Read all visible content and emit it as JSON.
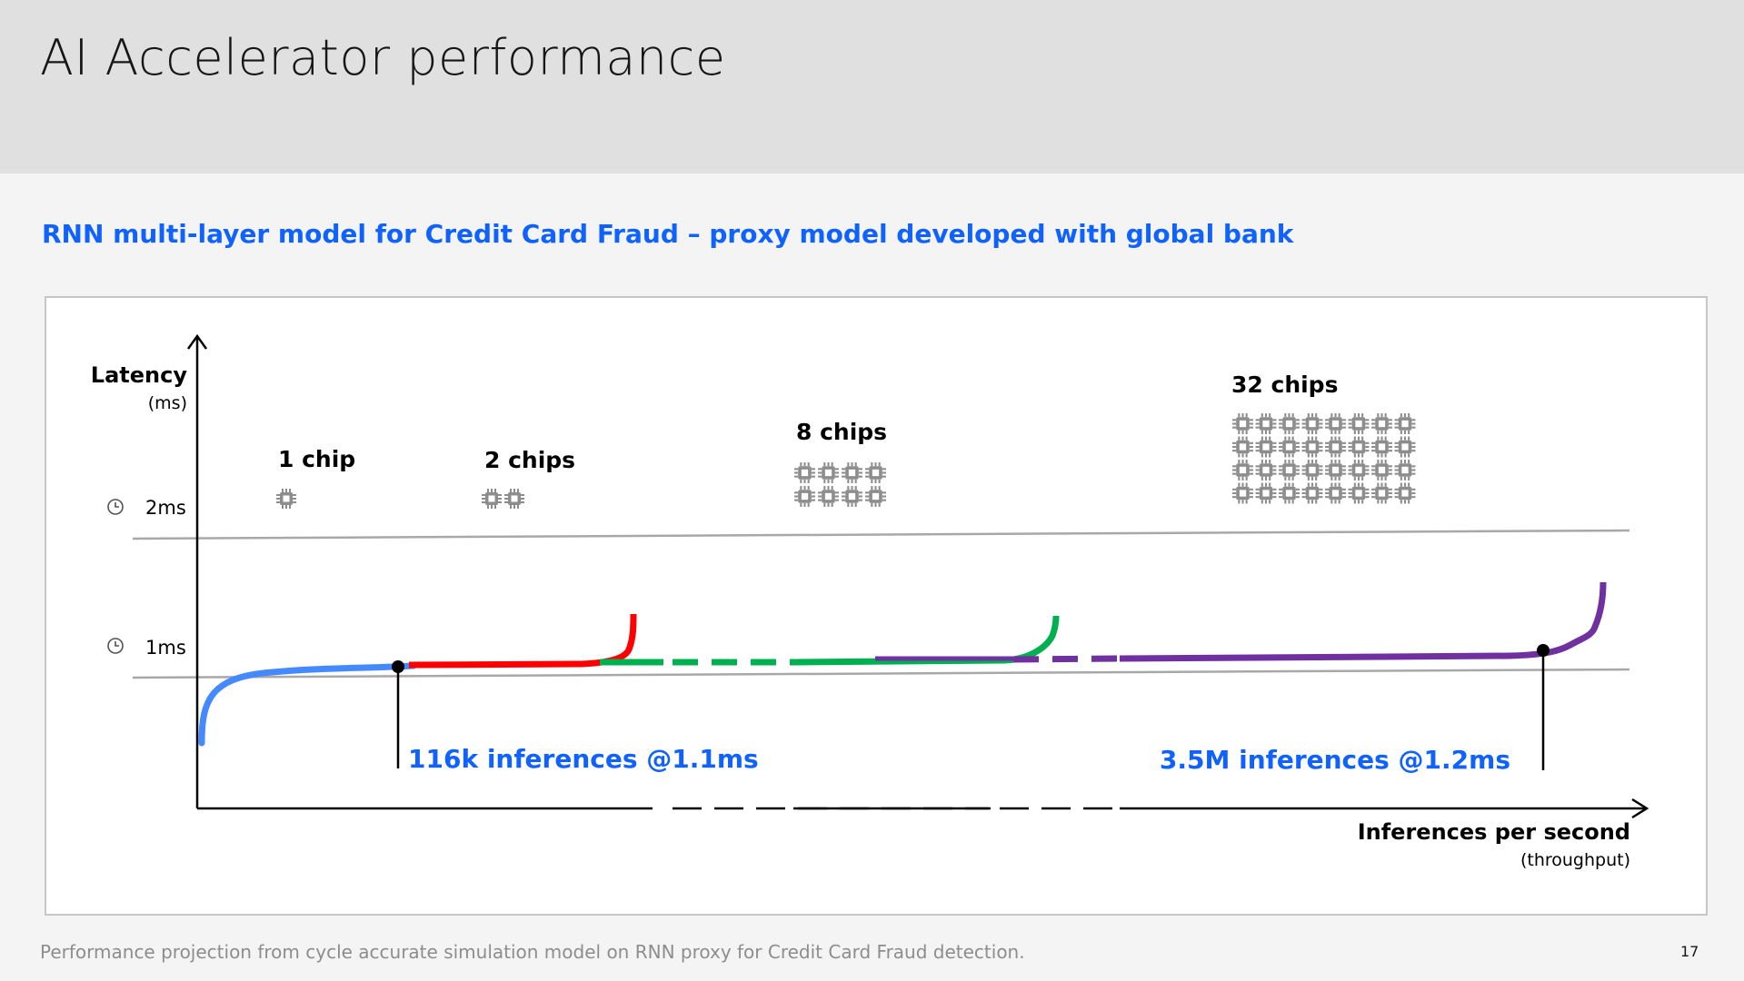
{
  "page": {
    "title": "AI Accelerator performance",
    "subtitle": "RNN multi-layer model for Credit Card Fraud – proxy model developed with global bank",
    "footnote": "Performance projection from cycle accurate simulation model on RNN proxy for Credit Card Fraud detection.",
    "page_number": "17"
  },
  "colors": {
    "accent": "#0f62fe",
    "chip_1": "#4589ff",
    "chip_2": "#ff0000",
    "chip_8": "#00b050",
    "chip_32": "#7030a0",
    "chip_icon": "#8d8d8d",
    "reference_line": "#a8a8a8"
  },
  "chart_data": {
    "type": "line",
    "ylabel": "Latency",
    "ylabel_unit": "(ms)",
    "xlabel": "Inferences per second",
    "xlabel_unit": "(throughput)",
    "y_reference_lines": [
      {
        "label": "2ms",
        "value": 2,
        "icon": "clock-icon"
      },
      {
        "label": "1ms",
        "value": 1,
        "icon": "clock-icon"
      }
    ],
    "series": [
      {
        "name": "1 chip",
        "chips": 1,
        "color": "#4589ff"
      },
      {
        "name": "2 chips",
        "chips": 2,
        "color": "#ff0000"
      },
      {
        "name": "8 chips",
        "chips": 8,
        "color": "#00b050"
      },
      {
        "name": "32 chips",
        "chips": 32,
        "color": "#7030a0"
      }
    ],
    "annotations": [
      {
        "text": "116k inferences @1.1ms",
        "throughput": 116000,
        "latency_ms": 1.1
      },
      {
        "text": "3.5M inferences @1.2ms",
        "throughput": 3500000,
        "latency_ms": 1.2
      }
    ],
    "x_axis_broken": true
  }
}
